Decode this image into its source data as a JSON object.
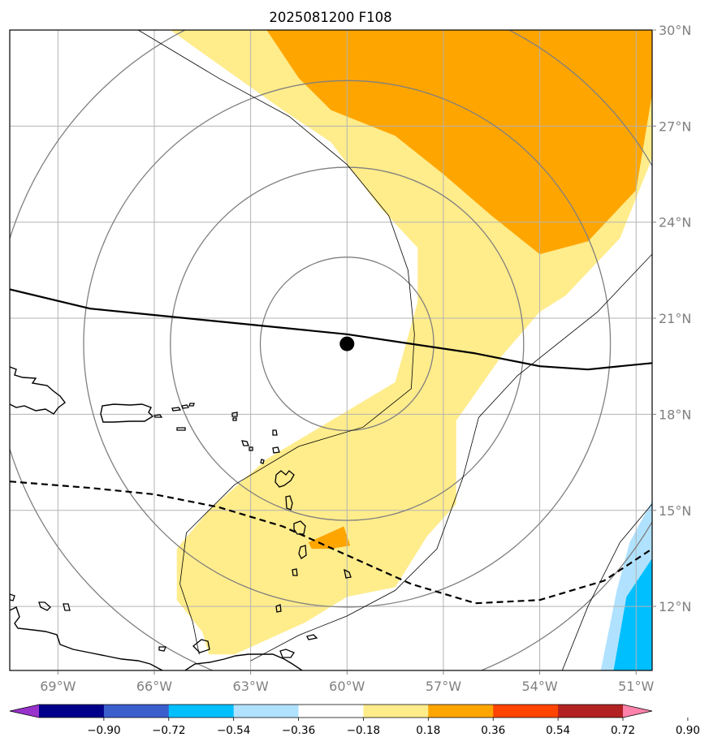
{
  "chart_data": {
    "type": "heatmap",
    "title": "2025081200 F108",
    "projection": "lat-lon map",
    "lon_range": [
      -70.5,
      -50.5
    ],
    "lat_range": [
      10,
      30
    ],
    "lon_ticks": [
      -69,
      -66,
      -63,
      -60,
      -57,
      -54,
      -51
    ],
    "lon_tick_labels": [
      "69°W",
      "66°W",
      "63°W",
      "60°W",
      "57°W",
      "54°W",
      "51°W"
    ],
    "lat_ticks": [
      12,
      15,
      18,
      21,
      24,
      27,
      30
    ],
    "lat_tick_labels": [
      "12°N",
      "15°N",
      "18°N",
      "21°N",
      "24°N",
      "27°N",
      "30°N"
    ],
    "grid": true,
    "storm_center": {
      "lon": -60.0,
      "lat": 20.2
    },
    "range_rings_deg": [
      2.7,
      5.5,
      8.2,
      11.0
    ],
    "colorbar": {
      "levels": [
        "−0.90",
        "−0.72",
        "−0.54",
        "−0.36",
        "−0.18",
        "0.18",
        "0.36",
        "0.54",
        "0.72",
        "0.90"
      ],
      "colors": [
        "#9932cc",
        "#00008b",
        "#3a5fcd",
        "#00bfff",
        "#b0e2ff",
        "#ffffff",
        "#ffec8b",
        "#ffa500",
        "#ff4500",
        "#b22222",
        "#ff82ab"
      ],
      "extend": "both"
    },
    "shaded_regions": [
      {
        "name": "yellow-band",
        "level": "0.18–0.36",
        "color": "#ffec8b",
        "lonlat": [
          [
            -65.5,
            30
          ],
          [
            -62,
            27.5
          ],
          [
            -60.5,
            26.5
          ],
          [
            -59,
            24.5
          ],
          [
            -57.8,
            23.2
          ],
          [
            -57.8,
            21.5
          ],
          [
            -58.5,
            19
          ],
          [
            -60.5,
            17.8
          ],
          [
            -62.5,
            16.6
          ],
          [
            -64.3,
            15
          ],
          [
            -65.3,
            13.8
          ],
          [
            -65.3,
            12.2
          ],
          [
            -64.5,
            11.2
          ],
          [
            -64.3,
            10.5
          ],
          [
            -63.5,
            10.5
          ],
          [
            -61.3,
            11.5
          ],
          [
            -60,
            12.3
          ],
          [
            -58.5,
            12.6
          ],
          [
            -57.5,
            14.2
          ],
          [
            -56.6,
            15.2
          ],
          [
            -56.6,
            17.8
          ],
          [
            -55.2,
            19.8
          ],
          [
            -54,
            21.2
          ],
          [
            -53.2,
            21.7
          ],
          [
            -51.5,
            23.5
          ],
          [
            -50.5,
            26
          ],
          [
            -50.5,
            30
          ]
        ]
      },
      {
        "name": "orange-region-north",
        "level": "0.36–0.54",
        "color": "#ffa500",
        "lonlat": [
          [
            -62.5,
            30
          ],
          [
            -61.5,
            28.5
          ],
          [
            -60.5,
            27.5
          ],
          [
            -58.5,
            26.7
          ],
          [
            -57,
            25.5
          ],
          [
            -55.5,
            24.2
          ],
          [
            -54,
            23
          ],
          [
            -52.5,
            23.4
          ],
          [
            -51,
            25
          ],
          [
            -50.5,
            28
          ],
          [
            -50.5,
            30
          ]
        ]
      },
      {
        "name": "orange-patch-south",
        "level": "0.36–0.54",
        "color": "#ffa500",
        "lonlat": [
          [
            -61.2,
            14.0
          ],
          [
            -60.1,
            14.5
          ],
          [
            -59.9,
            13.9
          ],
          [
            -60.5,
            13.8
          ],
          [
            -61.1,
            13.8
          ]
        ]
      },
      {
        "name": "light-blue-region",
        "level": "−0.36–−0.18",
        "color": "#b0e2ff",
        "lonlat": [
          [
            -52.1,
            10
          ],
          [
            -51.6,
            12.5
          ],
          [
            -51.2,
            14
          ],
          [
            -50.5,
            15.3
          ],
          [
            -50.5,
            10
          ]
        ]
      },
      {
        "name": "blue-region",
        "level": "−0.54–−0.36",
        "color": "#00bfff",
        "lonlat": [
          [
            -51.7,
            10
          ],
          [
            -51.3,
            12.3
          ],
          [
            -50.5,
            13.5
          ],
          [
            -50.5,
            10
          ]
        ]
      }
    ],
    "lines": [
      {
        "name": "solid-track-line",
        "style": "solid",
        "lonlat": [
          [
            -70.5,
            21.9
          ],
          [
            -68,
            21.3
          ],
          [
            -66,
            21.1
          ],
          [
            -64,
            20.9
          ],
          [
            -62,
            20.7
          ],
          [
            -60,
            20.5
          ],
          [
            -58,
            20.2
          ],
          [
            -56,
            19.9
          ],
          [
            -54,
            19.5
          ],
          [
            -52.5,
            19.4
          ],
          [
            -51.5,
            19.5
          ],
          [
            -50.5,
            19.6
          ]
        ]
      },
      {
        "name": "dashed-track-line",
        "style": "dashed",
        "lonlat": [
          [
            -70.5,
            15.9
          ],
          [
            -68,
            15.7
          ],
          [
            -66,
            15.5
          ],
          [
            -64,
            15.1
          ],
          [
            -62,
            14.5
          ],
          [
            -60,
            13.6
          ],
          [
            -58,
            12.7
          ],
          [
            -56,
            12.1
          ],
          [
            -54,
            12.2
          ],
          [
            -52,
            12.8
          ],
          [
            -50.5,
            13.8
          ]
        ]
      },
      {
        "name": "thin-contour-west",
        "style": "thin",
        "lonlat": [
          [
            -66.5,
            30
          ],
          [
            -64,
            28.5
          ],
          [
            -61.8,
            27.3
          ],
          [
            -60,
            25.8
          ],
          [
            -58.7,
            24.2
          ],
          [
            -58.1,
            22.5
          ],
          [
            -57.9,
            20.5
          ],
          [
            -58,
            18.8
          ],
          [
            -59.5,
            17.6
          ],
          [
            -61.5,
            17.0
          ],
          [
            -63.5,
            15.8
          ],
          [
            -65.0,
            14.3
          ],
          [
            -65.2,
            12.7
          ],
          [
            -64.8,
            11.5
          ],
          [
            -64.6,
            10.5
          ]
        ]
      },
      {
        "name": "thin-contour-east",
        "style": "thin",
        "lonlat": [
          [
            -50.5,
            23
          ],
          [
            -52.2,
            21.2
          ],
          [
            -54.7,
            19.2
          ],
          [
            -55.9,
            17.9
          ],
          [
            -56.4,
            16.0
          ],
          [
            -57.2,
            13.8
          ],
          [
            -58.5,
            12.5
          ],
          [
            -60,
            11.7
          ],
          [
            -61.5,
            11.1
          ],
          [
            -63,
            10.3
          ]
        ]
      },
      {
        "name": "thin-contour-southeast",
        "style": "thin",
        "lonlat": [
          [
            -50.5,
            15.2
          ],
          [
            -51.5,
            14.0
          ],
          [
            -52.5,
            12.0
          ],
          [
            -53.3,
            10
          ]
        ]
      }
    ]
  }
}
